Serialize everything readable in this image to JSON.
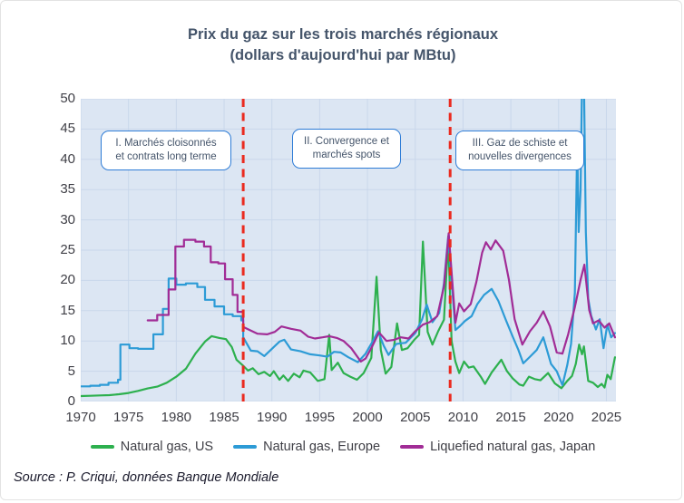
{
  "title": {
    "line1": "Prix du gaz sur les trois marchés régionaux",
    "line2": "(dollars d'aujourd'hui par MBtu)"
  },
  "source": "Source : P. Criqui, données Banque Mondiale",
  "colors": {
    "title_text": "#44546a",
    "axis_text": "#3f3f46",
    "plot_background": "#dce6f3",
    "gridline": "#c9d7eb",
    "divider_red": "#ea2a1f",
    "annotation_border": "#2e7cd6",
    "annotation_text": "#44546a",
    "series_us_green": "#2db04e",
    "series_europe_blue": "#2d9bd6",
    "series_japan_purple": "#a12c96"
  },
  "chart_data": {
    "type": "line",
    "title": "Prix du gaz sur les trois marchés régionaux",
    "subtitle": "(dollars d'aujourd'hui par MBtu)",
    "xlabel": "",
    "ylabel": "dollars d'aujourd'hui par MBtu",
    "xlim": [
      1970,
      2026
    ],
    "ylim": [
      0,
      50
    ],
    "x_ticks": [
      1970,
      1975,
      1980,
      1985,
      1990,
      1995,
      2000,
      2005,
      2010,
      2015,
      2020,
      2025
    ],
    "y_ticks": [
      0,
      5,
      10,
      15,
      20,
      25,
      30,
      35,
      40,
      45,
      50
    ],
    "grid": true,
    "legend_position": "bottom",
    "dividers": [
      1987.0,
      2008.65
    ],
    "annotations": [
      {
        "line1": "I. Marchés cloisonnés",
        "line2": "et contrats long terme"
      },
      {
        "line1": "II. Convergence et",
        "line2": "marchés spots"
      },
      {
        "line1": "III. Gaz de schiste et",
        "line2": "nouvelles divergences"
      }
    ],
    "series": [
      {
        "name": "Natural gas, US",
        "color": "#2db04e",
        "step_until": 0,
        "points": [
          [
            1970,
            0.9
          ],
          [
            1971,
            0.95
          ],
          [
            1972,
            1.0
          ],
          [
            1973,
            1.05
          ],
          [
            1974,
            1.2
          ],
          [
            1975,
            1.4
          ],
          [
            1976,
            1.75
          ],
          [
            1977,
            2.15
          ],
          [
            1978,
            2.45
          ],
          [
            1979,
            3.1
          ],
          [
            1980,
            4.1
          ],
          [
            1981,
            5.4
          ],
          [
            1982,
            7.9
          ],
          [
            1983,
            9.9
          ],
          [
            1983.7,
            10.8
          ],
          [
            1984.5,
            10.5
          ],
          [
            1985.2,
            10.3
          ],
          [
            1985.8,
            9.0
          ],
          [
            1986.3,
            6.9
          ],
          [
            1987,
            5.9
          ],
          [
            1987.5,
            5.1
          ],
          [
            1988,
            5.5
          ],
          [
            1988.6,
            4.5
          ],
          [
            1989.2,
            4.9
          ],
          [
            1989.8,
            4.2
          ],
          [
            1990.2,
            5.0
          ],
          [
            1990.8,
            3.6
          ],
          [
            1991.2,
            4.3
          ],
          [
            1991.7,
            3.4
          ],
          [
            1992.3,
            4.6
          ],
          [
            1992.9,
            4.0
          ],
          [
            1993.3,
            5.1
          ],
          [
            1994,
            4.8
          ],
          [
            1994.8,
            3.4
          ],
          [
            1995.5,
            3.7
          ],
          [
            1996.0,
            11.0
          ],
          [
            1996.25,
            5.2
          ],
          [
            1996.9,
            6.4
          ],
          [
            1997.5,
            4.7
          ],
          [
            1998.2,
            4.1
          ],
          [
            1998.9,
            3.6
          ],
          [
            1999.6,
            4.7
          ],
          [
            2000.4,
            7.2
          ],
          [
            2000.95,
            20.6
          ],
          [
            2001.4,
            8.5
          ],
          [
            2001.9,
            4.6
          ],
          [
            2002.5,
            5.7
          ],
          [
            2003.1,
            12.9
          ],
          [
            2003.6,
            8.5
          ],
          [
            2004.2,
            8.8
          ],
          [
            2004.9,
            10.2
          ],
          [
            2005.4,
            11.0
          ],
          [
            2005.8,
            26.4
          ],
          [
            2006.3,
            11.5
          ],
          [
            2006.8,
            9.4
          ],
          [
            2007.4,
            11.6
          ],
          [
            2008.0,
            13.5
          ],
          [
            2008.45,
            26.8
          ],
          [
            2008.8,
            10.0
          ],
          [
            2009.2,
            6.6
          ],
          [
            2009.6,
            4.7
          ],
          [
            2010.1,
            6.6
          ],
          [
            2010.6,
            5.6
          ],
          [
            2011.1,
            5.8
          ],
          [
            2011.9,
            4.0
          ],
          [
            2012.3,
            2.9
          ],
          [
            2013.0,
            4.8
          ],
          [
            2014.0,
            6.9
          ],
          [
            2014.6,
            5.0
          ],
          [
            2015.2,
            3.8
          ],
          [
            2015.9,
            2.8
          ],
          [
            2016.3,
            2.6
          ],
          [
            2016.9,
            4.1
          ],
          [
            2017.5,
            3.7
          ],
          [
            2018.1,
            3.5
          ],
          [
            2018.9,
            4.7
          ],
          [
            2019.6,
            3.0
          ],
          [
            2020.3,
            2.2
          ],
          [
            2020.9,
            3.4
          ],
          [
            2021.4,
            4.2
          ],
          [
            2021.8,
            6.2
          ],
          [
            2022.15,
            9.4
          ],
          [
            2022.45,
            7.8
          ],
          [
            2022.65,
            9.1
          ],
          [
            2023.1,
            3.4
          ],
          [
            2023.6,
            3.1
          ],
          [
            2024.1,
            2.4
          ],
          [
            2024.5,
            2.9
          ],
          [
            2024.8,
            2.3
          ],
          [
            2025.1,
            4.4
          ],
          [
            2025.45,
            3.7
          ],
          [
            2025.9,
            7.3
          ]
        ]
      },
      {
        "name": "Natural gas, Europe",
        "color": "#2d9bd6",
        "step_until": 1987.02,
        "points": [
          [
            1970,
            2.5
          ],
          [
            1971,
            2.6
          ],
          [
            1972,
            2.75
          ],
          [
            1972.9,
            3.1
          ],
          [
            1973.9,
            3.6
          ],
          [
            1974.15,
            9.4
          ],
          [
            1975.1,
            8.8
          ],
          [
            1976,
            8.7
          ],
          [
            1977.6,
            11.1
          ],
          [
            1978.6,
            15.3
          ],
          [
            1979.2,
            20.3
          ],
          [
            1980,
            19.3
          ],
          [
            1981,
            19.5
          ],
          [
            1982.2,
            18.9
          ],
          [
            1983,
            16.8
          ],
          [
            1984,
            15.7
          ],
          [
            1985,
            14.4
          ],
          [
            1985.9,
            14.1
          ],
          [
            1986.8,
            13.4
          ],
          [
            1987.0,
            10.6
          ],
          [
            1987.8,
            8.4
          ],
          [
            1988.5,
            8.3
          ],
          [
            1989.2,
            7.5
          ],
          [
            1990,
            8.7
          ],
          [
            1990.8,
            9.9
          ],
          [
            1991.3,
            10.2
          ],
          [
            1992,
            8.6
          ],
          [
            1993,
            8.3
          ],
          [
            1994,
            7.8
          ],
          [
            1995,
            7.6
          ],
          [
            1995.8,
            7.4
          ],
          [
            1996.5,
            8.2
          ],
          [
            1997.2,
            8.1
          ],
          [
            1998,
            7.3
          ],
          [
            1999,
            6.5
          ],
          [
            1999.8,
            7.9
          ],
          [
            2000.5,
            9.8
          ],
          [
            2001.1,
            11.6
          ],
          [
            2001.7,
            9.2
          ],
          [
            2002.2,
            7.7
          ],
          [
            2003,
            9.5
          ],
          [
            2004,
            9.7
          ],
          [
            2005,
            11.3
          ],
          [
            2005.7,
            13.5
          ],
          [
            2006.2,
            16.0
          ],
          [
            2006.8,
            13.1
          ],
          [
            2007.5,
            14.6
          ],
          [
            2008.0,
            19.5
          ],
          [
            2008.45,
            27.3
          ],
          [
            2009.2,
            11.8
          ],
          [
            2009.7,
            12.5
          ],
          [
            2010.2,
            13.3
          ],
          [
            2010.9,
            14.1
          ],
          [
            2011.5,
            16.1
          ],
          [
            2012.2,
            17.6
          ],
          [
            2013.0,
            18.6
          ],
          [
            2013.7,
            16.6
          ],
          [
            2014.5,
            13.4
          ],
          [
            2015.2,
            10.7
          ],
          [
            2015.8,
            8.5
          ],
          [
            2016.3,
            6.3
          ],
          [
            2017.0,
            7.4
          ],
          [
            2017.7,
            8.5
          ],
          [
            2018.4,
            10.6
          ],
          [
            2019.2,
            6.2
          ],
          [
            2019.8,
            5.0
          ],
          [
            2020.4,
            2.7
          ],
          [
            2020.9,
            6.0
          ],
          [
            2021.3,
            9.5
          ],
          [
            2021.7,
            18.0
          ],
          [
            2021.95,
            43.0
          ],
          [
            2022.1,
            28.0
          ],
          [
            2022.3,
            35.0
          ],
          [
            2022.55,
            65.0
          ],
          [
            2022.85,
            28.0
          ],
          [
            2023.1,
            17.0
          ],
          [
            2023.4,
            14.2
          ],
          [
            2023.9,
            11.9
          ],
          [
            2024.3,
            13.6
          ],
          [
            2024.7,
            8.8
          ],
          [
            2025.1,
            12.7
          ],
          [
            2025.5,
            10.6
          ],
          [
            2025.9,
            11.3
          ]
        ]
      },
      {
        "name": "Liquefied natural gas, Japan",
        "color": "#a12c96",
        "step_until": 1987.02,
        "points": [
          [
            1977,
            13.4
          ],
          [
            1978,
            14.3
          ],
          [
            1979.2,
            18.5
          ],
          [
            1979.9,
            25.6
          ],
          [
            1980.8,
            26.7
          ],
          [
            1982,
            26.4
          ],
          [
            1982.9,
            25.6
          ],
          [
            1983.6,
            23.0
          ],
          [
            1984.4,
            22.8
          ],
          [
            1985.1,
            20.2
          ],
          [
            1985.9,
            17.6
          ],
          [
            1986.4,
            14.8
          ],
          [
            1987.0,
            12.3
          ],
          [
            1987.8,
            11.7
          ],
          [
            1988.5,
            11.2
          ],
          [
            1989.5,
            11.1
          ],
          [
            1990.3,
            11.5
          ],
          [
            1991,
            12.4
          ],
          [
            1992,
            12.0
          ],
          [
            1993,
            11.7
          ],
          [
            1993.8,
            10.7
          ],
          [
            1994.5,
            10.4
          ],
          [
            1995.3,
            10.6
          ],
          [
            1996,
            10.8
          ],
          [
            1996.8,
            10.5
          ],
          [
            1997.5,
            10.0
          ],
          [
            1998.3,
            8.8
          ],
          [
            1999.3,
            6.6
          ],
          [
            1999.8,
            7.1
          ],
          [
            2000.5,
            9.1
          ],
          [
            2001.2,
            11.4
          ],
          [
            2002,
            10.0
          ],
          [
            2002.8,
            10.2
          ],
          [
            2003.5,
            10.6
          ],
          [
            2004.3,
            10.4
          ],
          [
            2005,
            11.6
          ],
          [
            2005.8,
            12.7
          ],
          [
            2006.5,
            13.1
          ],
          [
            2007.3,
            14.1
          ],
          [
            2008.0,
            19.0
          ],
          [
            2008.5,
            27.8
          ],
          [
            2009.2,
            13.0
          ],
          [
            2009.6,
            16.2
          ],
          [
            2010.1,
            14.9
          ],
          [
            2010.8,
            16.1
          ],
          [
            2011.4,
            19.8
          ],
          [
            2012.0,
            24.6
          ],
          [
            2012.4,
            26.3
          ],
          [
            2012.9,
            25.1
          ],
          [
            2013.4,
            26.6
          ],
          [
            2014.2,
            24.9
          ],
          [
            2014.8,
            20.1
          ],
          [
            2015.4,
            13.6
          ],
          [
            2016.2,
            9.4
          ],
          [
            2017,
            11.6
          ],
          [
            2017.7,
            13.0
          ],
          [
            2018.4,
            14.9
          ],
          [
            2019.1,
            12.4
          ],
          [
            2019.8,
            8.1
          ],
          [
            2020.4,
            7.9
          ],
          [
            2021,
            11.1
          ],
          [
            2021.7,
            15.6
          ],
          [
            2022.3,
            20.1
          ],
          [
            2022.7,
            22.6
          ],
          [
            2023.2,
            15.1
          ],
          [
            2023.6,
            12.9
          ],
          [
            2024.2,
            13.4
          ],
          [
            2024.8,
            12.2
          ],
          [
            2025.3,
            12.9
          ],
          [
            2025.9,
            10.6
          ]
        ]
      }
    ]
  }
}
